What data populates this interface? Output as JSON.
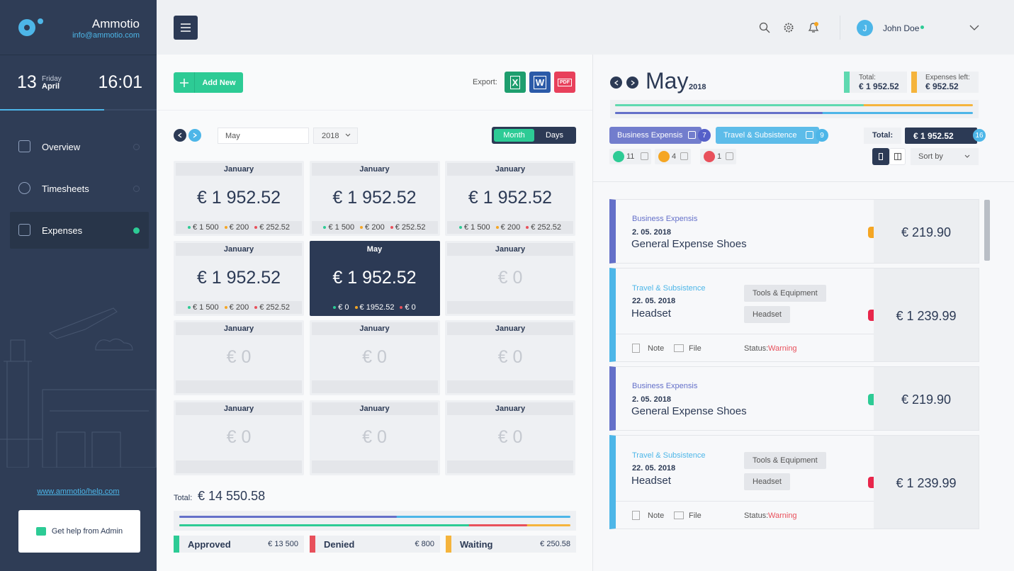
{
  "sidebar": {
    "brand": "Ammotio",
    "email": "info@ammotio.com",
    "day": "13",
    "weekday": "Friday",
    "month": "April",
    "time": "16:01",
    "nav": [
      "Overview",
      "Timesheets",
      "Expenses"
    ],
    "help_link": "www.ammotio/help.com",
    "help_button": "Get help from Admin"
  },
  "topbar": {
    "user_initial": "J",
    "user_name": "John Doe"
  },
  "toolbar": {
    "add_button": "Add New",
    "export_label": "Export:",
    "export_formats": [
      {
        "label": "X",
        "color": "#1e9e6e"
      },
      {
        "label": "W",
        "color": "#2b5aa8"
      },
      {
        "label": "PDF",
        "color": "#e8405b"
      }
    ]
  },
  "filters": {
    "month": "May",
    "year": "2018",
    "views": [
      "Month",
      "Days"
    ]
  },
  "cards": [
    {
      "month": "January",
      "amount": "€ 1 952.52",
      "breakdown": [
        {
          "text": "€ 1 500",
          "color": "#2dcb95"
        },
        {
          "text": "€ 200",
          "color": "#f5a623"
        },
        {
          "text": "€ 252.52",
          "color": "#e8505b"
        }
      ]
    },
    {
      "month": "January",
      "amount": "€ 1 952.52",
      "breakdown": [
        {
          "text": "€ 1 500",
          "color": "#2dcb95"
        },
        {
          "text": "€ 200",
          "color": "#f5a623"
        },
        {
          "text": "€ 252.52",
          "color": "#e8505b"
        }
      ]
    },
    {
      "month": "January",
      "amount": "€ 1 952.52",
      "breakdown": [
        {
          "text": "€ 1 500",
          "color": "#2dcb95"
        },
        {
          "text": "€ 200",
          "color": "#f5a623"
        },
        {
          "text": "€ 252.52",
          "color": "#e8505b"
        }
      ]
    },
    {
      "month": "January",
      "amount": "€ 1 952.52",
      "breakdown": [
        {
          "text": "€ 1 500",
          "color": "#2dcb95"
        },
        {
          "text": "€ 200",
          "color": "#f5a623"
        },
        {
          "text": "€ 252.52",
          "color": "#e8505b"
        }
      ]
    },
    {
      "month": "May",
      "amount": "€ 1 952.52",
      "selected": true,
      "breakdown": [
        {
          "text": "€ 0",
          "color": "#2dcb95"
        },
        {
          "text": "€ 1952.52",
          "color": "#f5a623"
        },
        {
          "text": "€ 0",
          "color": "#e8505b"
        }
      ]
    },
    {
      "month": "January",
      "amount": "€ 0"
    },
    {
      "month": "January",
      "amount": "€ 0"
    },
    {
      "month": "January",
      "amount": "€ 0"
    },
    {
      "month": "January",
      "amount": "€ 0"
    },
    {
      "month": "January",
      "amount": "€ 0"
    },
    {
      "month": "January",
      "amount": "€ 0"
    },
    {
      "month": "January",
      "amount": "€ 0"
    }
  ],
  "summary": {
    "total_label": "Total:",
    "total": "€ 14 550.58",
    "statuses": [
      {
        "label": "Approved",
        "amount": "€ 13 500",
        "color": "#2dcb95"
      },
      {
        "label": "Denied",
        "amount": "€ 800",
        "color": "#e8505b"
      },
      {
        "label": "Waiting",
        "amount": "€ 250.58",
        "color": "#f5b43c"
      }
    ]
  },
  "detail": {
    "month": "May",
    "year": "2018",
    "total_label": "Total:",
    "total": "€ 1 952.52",
    "left_label": "Expenses left:",
    "left": "€ 952.52",
    "tags": [
      {
        "label": "Business Expensis",
        "count": "7",
        "color": "#6470c9"
      },
      {
        "label": "Travel & Subsistence",
        "count": "9",
        "color": "#4db6e8"
      }
    ],
    "sum_label": "Total:",
    "sum": "€ 1 952.52",
    "sum_count": "16",
    "status_counts": [
      {
        "count": "11",
        "color": "#2dcb95"
      },
      {
        "count": "4",
        "color": "#f5a623"
      },
      {
        "count": "1",
        "color": "#e8505b"
      }
    ],
    "sort": "Sort by"
  },
  "expenses": [
    {
      "category": "Business Expensis",
      "date": "2. 05. 2018",
      "title": "General Expense Shoes",
      "amount": "€ 219.90",
      "color": "#6470c9",
      "icon_color": "#f5a623"
    },
    {
      "category": "Travel & Subsistence",
      "date": "22. 05. 2018",
      "title": "Headset",
      "amount": "€ 1 239.99",
      "color": "#4db6e8",
      "icon_color": "#e8264b",
      "tags": [
        "Tools & Equipment",
        "Headset"
      ],
      "note": "Note",
      "file": "File",
      "status_label": "Status:",
      "status": "Warning"
    },
    {
      "category": "Business Expensis",
      "date": "2. 05. 2018",
      "title": "General Expense Shoes",
      "amount": "€ 219.90",
      "color": "#6470c9",
      "icon_color": "#2dcb95"
    },
    {
      "category": "Travel & Subsistence",
      "date": "22. 05. 2018",
      "title": "Headset",
      "amount": "€ 1 239.99",
      "color": "#4db6e8",
      "icon_color": "#e8264b",
      "tags": [
        "Tools & Equipment",
        "Headset"
      ],
      "note": "Note",
      "file": "File",
      "status_label": "Status:",
      "status": "Warning"
    }
  ]
}
